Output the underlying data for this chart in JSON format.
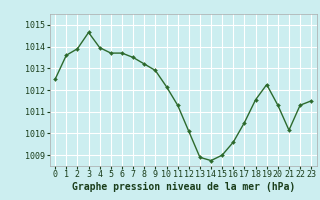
{
  "x": [
    0,
    1,
    2,
    3,
    4,
    5,
    6,
    7,
    8,
    9,
    10,
    11,
    12,
    13,
    14,
    15,
    16,
    17,
    18,
    19,
    20,
    21,
    22,
    23
  ],
  "y": [
    1012.5,
    1013.6,
    1013.9,
    1014.65,
    1013.95,
    1013.7,
    1013.7,
    1013.5,
    1013.2,
    1012.9,
    1012.15,
    1011.3,
    1010.1,
    1008.9,
    1008.75,
    1009.0,
    1009.6,
    1010.5,
    1011.55,
    1012.25,
    1011.3,
    1010.15,
    1011.3,
    1011.5
  ],
  "line_color": "#2d6a2d",
  "marker": "D",
  "marker_size": 2.0,
  "line_width": 1.0,
  "bg_color": "#cceef0",
  "grid_color": "#ffffff",
  "title": "Graphe pression niveau de la mer (hPa)",
  "title_fontsize": 7.0,
  "title_color": "#1a3d1a",
  "xlabel_ticks": [
    "0",
    "1",
    "2",
    "3",
    "4",
    "5",
    "6",
    "7",
    "8",
    "9",
    "10",
    "11",
    "12",
    "13",
    "14",
    "15",
    "16",
    "17",
    "18",
    "19",
    "20",
    "21",
    "22",
    "23"
  ],
  "ylim": [
    1008.5,
    1015.5
  ],
  "yticks": [
    1009,
    1010,
    1011,
    1012,
    1013,
    1014,
    1015
  ],
  "tick_fontsize": 6.0,
  "tick_color": "#1a3d1a"
}
